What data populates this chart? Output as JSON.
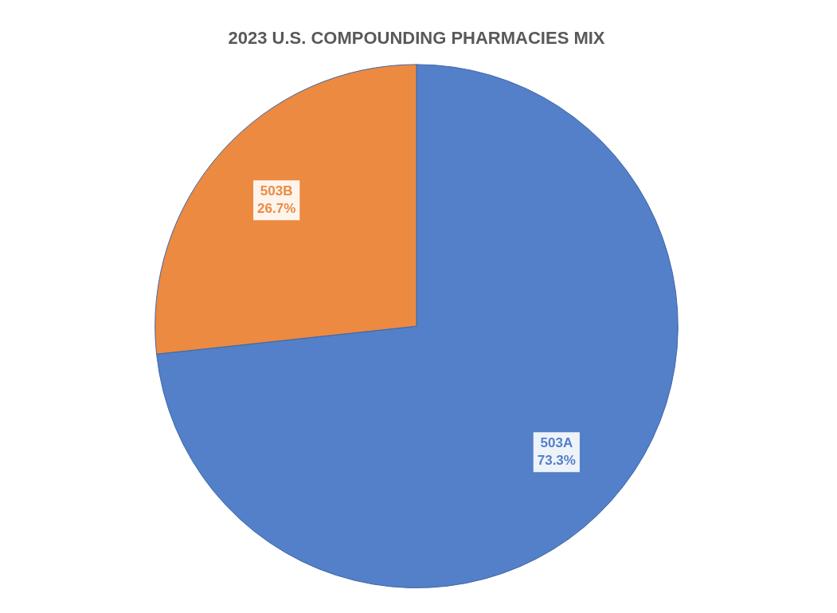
{
  "chart_data": {
    "type": "pie",
    "title": "2023 U.S. COMPOUNDING PHARMACIES MIX",
    "categories": [
      "503A",
      "503B"
    ],
    "values": [
      73.3,
      26.7
    ],
    "colors": [
      "#5380c8",
      "#ec8a41"
    ],
    "value_labels": [
      "73.3%",
      "26.7%"
    ],
    "legend": false
  }
}
